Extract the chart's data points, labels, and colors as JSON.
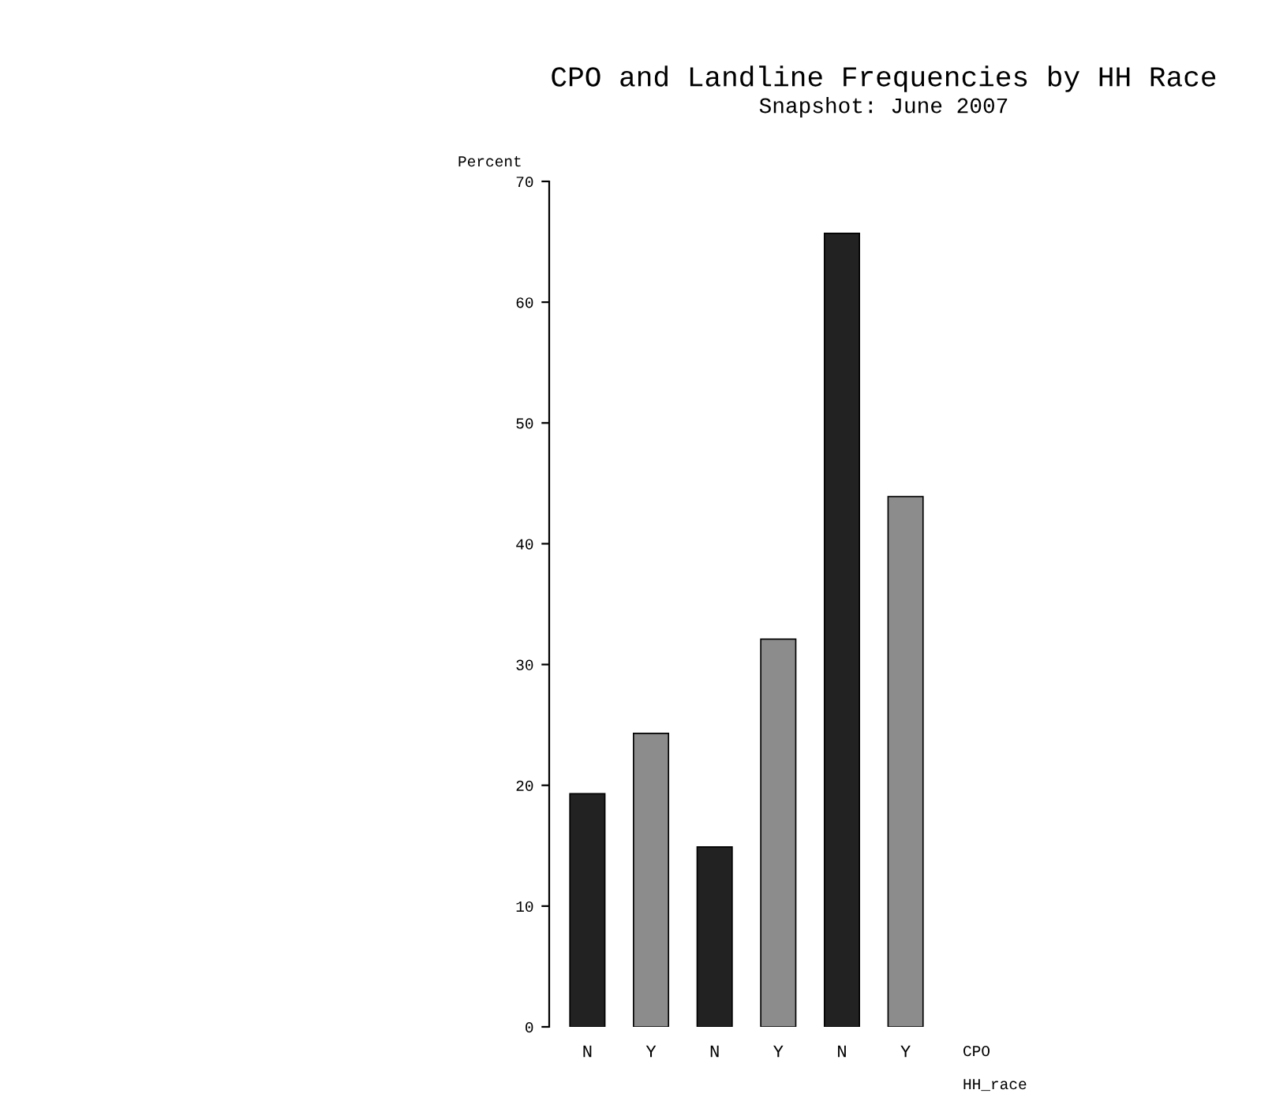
{
  "chart_data": {
    "type": "bar",
    "title": "CPO and Landline Frequencies by HH Race",
    "subtitle": "Snapshot: June 2007",
    "ylabel": "Percent",
    "categories": [
      "N",
      "Y",
      "N",
      "Y",
      "N",
      "Y"
    ],
    "values": [
      19.3,
      24.3,
      14.9,
      32.1,
      65.7,
      43.9
    ],
    "colors": [
      "#222222",
      "#8c8c8c",
      "#222222",
      "#8c8c8c",
      "#222222",
      "#8c8c8c"
    ],
    "ylim": [
      0,
      70
    ],
    "yticks": [
      0,
      10,
      20,
      30,
      40,
      50,
      60,
      70
    ],
    "annotations": [
      "CPO",
      "HH_race"
    ],
    "grid": false,
    "legend": false
  }
}
